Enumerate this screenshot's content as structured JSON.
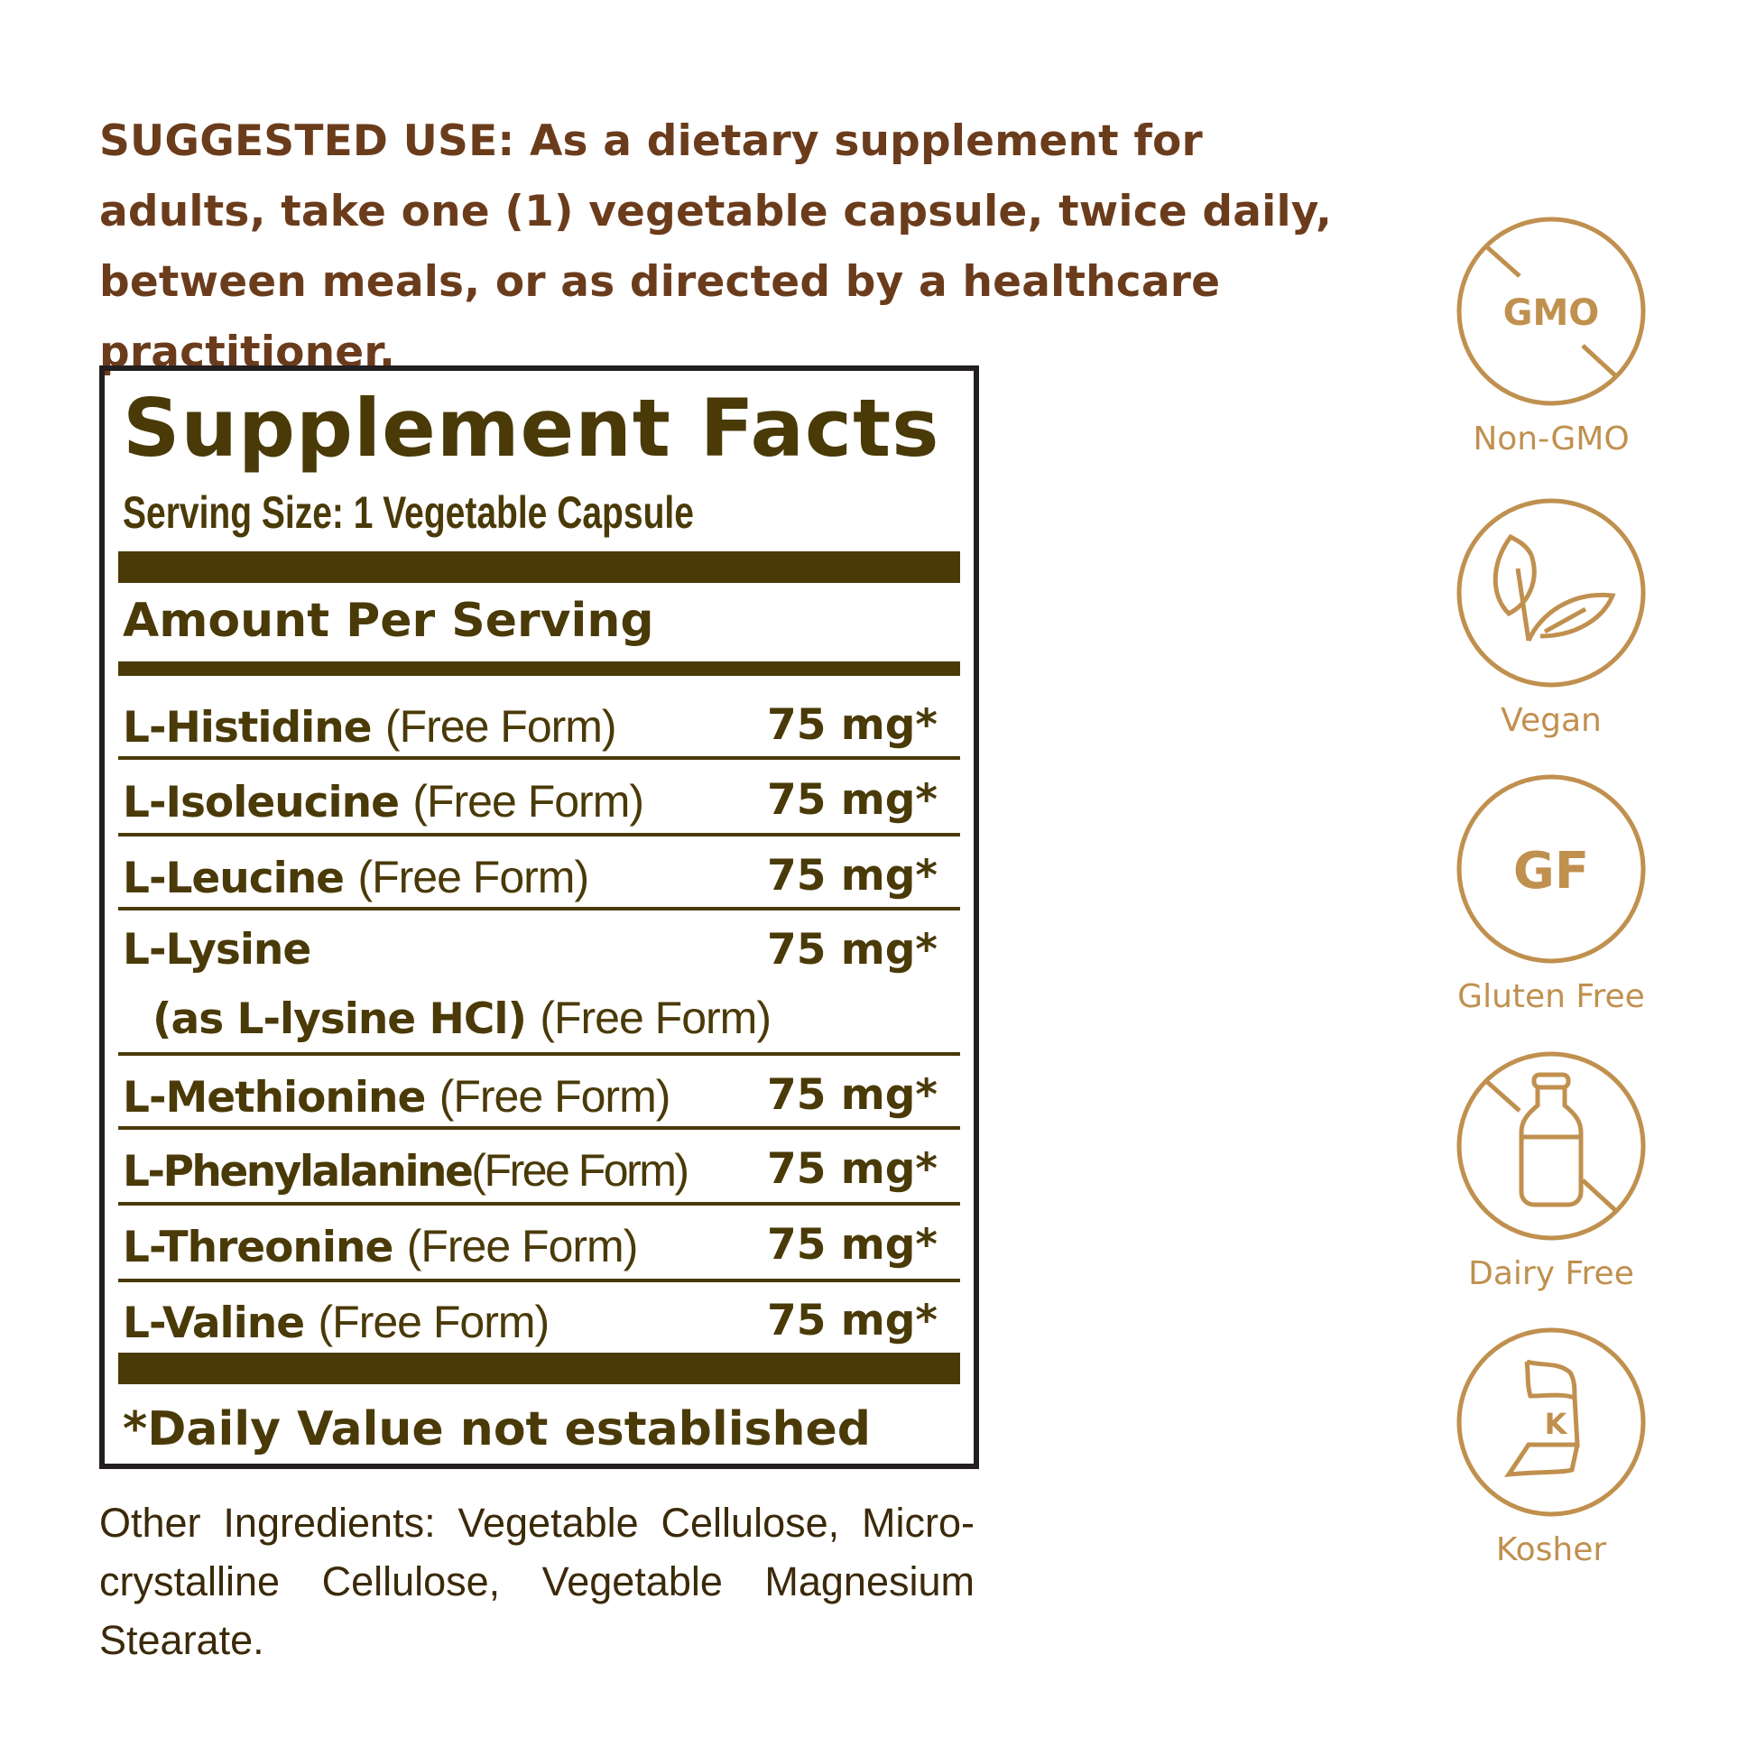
{
  "suggested_use": "SUGGESTED USE: As a dietary supplement for adults, take one (1) vegetable capsule, twice daily, between meals, or as directed by a healthcare practitioner.",
  "facts": {
    "title": "Supplement Facts",
    "serving_size": "Serving Size: 1 Vegetable Capsule",
    "amount_per_serving": "Amount Per Serving",
    "rows": [
      {
        "name": "L-Histidine",
        "form": "(Free Form)",
        "amount": "75 mg*"
      },
      {
        "name": "L-Isoleucine",
        "form": "(Free Form)",
        "amount": "75 mg*"
      },
      {
        "name": "L-Leucine",
        "form": "(Free Form)",
        "amount": "75 mg*"
      },
      {
        "name": "L-Lysine",
        "sub": "(as L-lysine HCl)",
        "form": "(Free Form)",
        "amount": "75 mg*"
      },
      {
        "name": "L-Methionine",
        "form": "(Free Form)",
        "amount": "75 mg*"
      },
      {
        "name": "L-Phenylalanine",
        "form": "(Free Form)",
        "amount": "75 mg*"
      },
      {
        "name": "L-Threonine",
        "form": "(Free Form)",
        "amount": "75 mg*"
      },
      {
        "name": "L-Valine",
        "form": "(Free Form)",
        "amount": "75 mg*"
      }
    ],
    "footnote": "*Daily Value not established"
  },
  "other_ingredients": "Other Ingredients: Vegetable Cellulose, Micro-crystalline Cellulose, Vegetable Magnesium Stearate.",
  "badges": [
    {
      "icon": "gmo-crossed-icon",
      "text": "GMO",
      "label": "Non-GMO"
    },
    {
      "icon": "leaf-icon",
      "label": "Vegan"
    },
    {
      "icon": "gf-icon",
      "text": "GF",
      "label": "Gluten Free"
    },
    {
      "icon": "milk-bottle-crossed-icon",
      "label": "Dairy Free"
    },
    {
      "icon": "kosher-icon",
      "text": "K",
      "label": "Kosher"
    }
  ],
  "colors": {
    "heading_brown": "#6b3c1c",
    "facts_dark": "#4a3a08",
    "badge_gold": "#c0904f"
  }
}
